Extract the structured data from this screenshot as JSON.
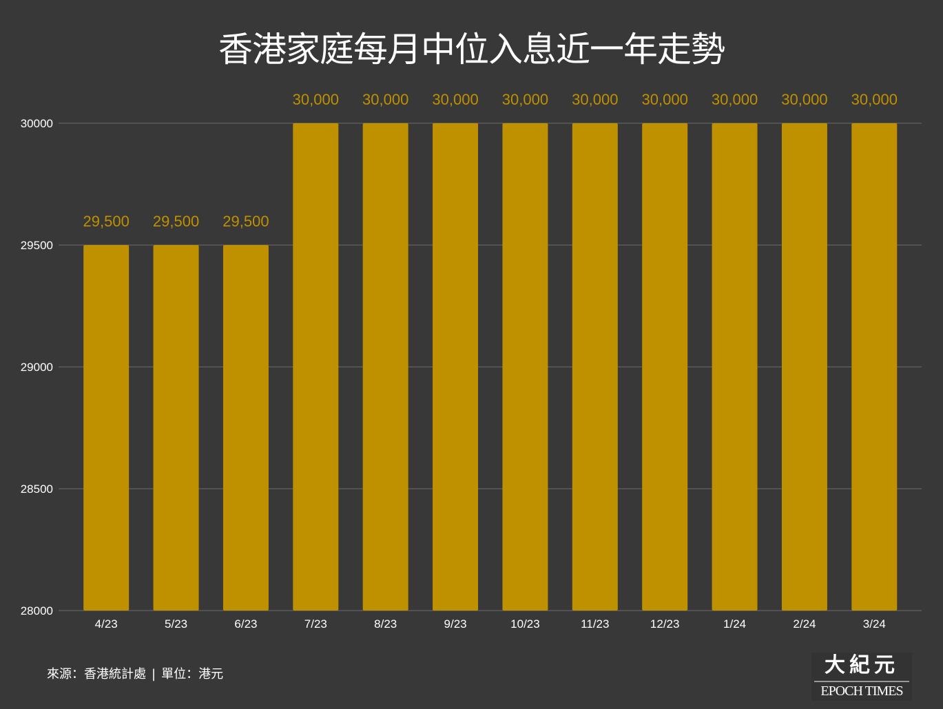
{
  "chart_data": {
    "type": "bar",
    "title": "香港家庭每月中位入息近一年走勢",
    "categories": [
      "4/23",
      "5/23",
      "6/23",
      "7/23",
      "8/23",
      "9/23",
      "10/23",
      "11/23",
      "12/23",
      "1/24",
      "2/24",
      "3/24"
    ],
    "values": [
      29500,
      29500,
      29500,
      30000,
      30000,
      30000,
      30000,
      30000,
      30000,
      30000,
      30000,
      30000
    ],
    "data_labels": [
      "29,500",
      "29,500",
      "29,500",
      "30,000",
      "30,000",
      "30,000",
      "30,000",
      "30,000",
      "30,000",
      "30,000",
      "30,000",
      "30,000"
    ],
    "xlabel": "",
    "ylabel": "",
    "ylim": [
      28000,
      30000
    ],
    "yticks": [
      "28000",
      "28500",
      "29000",
      "29500",
      "30000"
    ],
    "grid": true,
    "legend": "none",
    "colors": {
      "bar": "#BF9000",
      "label": "#BF9000",
      "background": "#383838",
      "grid": "#5a5a5a",
      "text": "#ffffff"
    }
  },
  "footer": {
    "source": "來源：香港統計處",
    "separator": "|",
    "unit": "單位：港元"
  },
  "logo": {
    "chinese": "大紀元",
    "english": "EPOCH TIMES"
  }
}
